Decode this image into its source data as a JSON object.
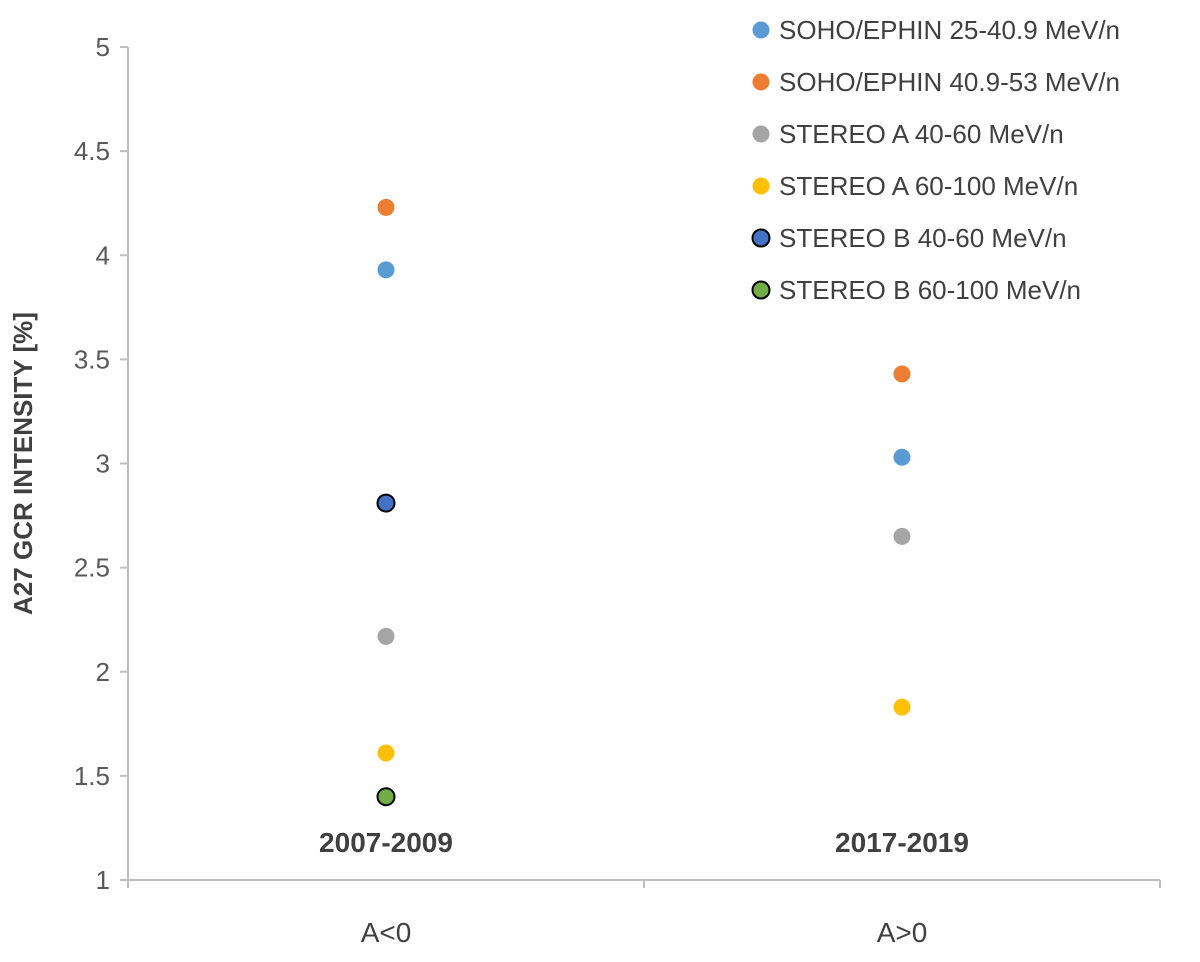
{
  "chart_data": {
    "type": "scatter",
    "title": "",
    "xlabel": "",
    "ylabel": "A27 GCR INTENSITY [%]",
    "ylim": [
      1,
      5
    ],
    "yticks": [
      "1",
      "1.5",
      "2",
      "2.5",
      "3",
      "3.5",
      "4",
      "4.5",
      "5"
    ],
    "categories": [
      "A<0",
      "A>0"
    ],
    "period_labels": [
      "2007-2009",
      "2017-2019"
    ],
    "grid": false,
    "legend_position": "top-right",
    "series": [
      {
        "name": "SOHO/EPHIN 25-40.9 MeV/n",
        "color": "#5b9bd5",
        "outline": "",
        "values": [
          3.93,
          3.03
        ]
      },
      {
        "name": "SOHO/EPHIN 40.9-53 MeV/n",
        "color": "#ed7d31",
        "outline": "",
        "values": [
          4.23,
          3.43
        ]
      },
      {
        "name": "STEREO A 40-60 MeV/n",
        "color": "#a5a5a5",
        "outline": "",
        "values": [
          2.17,
          2.65
        ]
      },
      {
        "name": "STEREO A 60-100 MeV/n",
        "color": "#ffc000",
        "outline": "",
        "values": [
          1.61,
          1.83
        ]
      },
      {
        "name": "STEREO B 40-60 MeV/n",
        "color": "#4472c4",
        "outline": "#000000",
        "values": [
          2.81,
          null
        ]
      },
      {
        "name": "STEREO B 60-100 MeV/n",
        "color": "#70ad47",
        "outline": "#000000",
        "values": [
          1.4,
          null
        ]
      }
    ]
  }
}
